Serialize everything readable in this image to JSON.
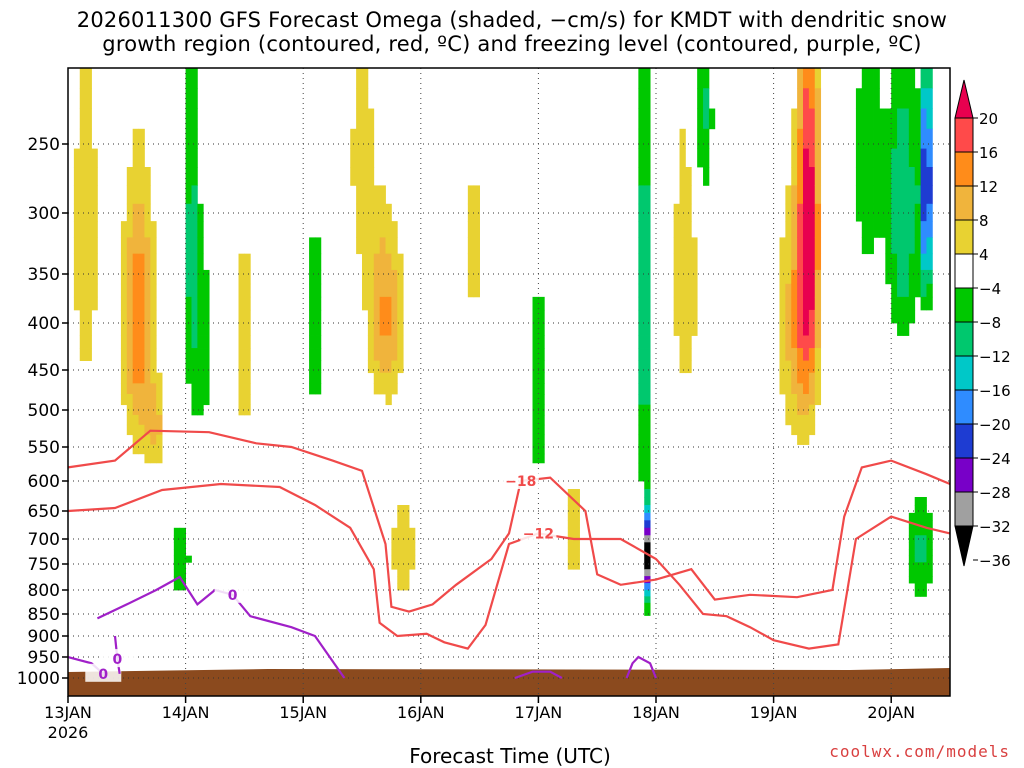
{
  "chart_data": {
    "type": "heatmap",
    "title_line1": "2026011300 GFS Forecast Omega (shaded, −cm/s) for KMDT with dendritic snow",
    "title_line2": "growth region (contoured, red, ºC) and freezing level (contoured, purple, ºC)",
    "xlabel": "Forecast Time (UTC)",
    "credit": "coolwx.com/models",
    "x_ticks": [
      {
        "label": "13JAN",
        "sub": "2026",
        "day": 0
      },
      {
        "label": "14JAN",
        "sub": "",
        "day": 1
      },
      {
        "label": "15JAN",
        "sub": "",
        "day": 2
      },
      {
        "label": "16JAN",
        "sub": "",
        "day": 3
      },
      {
        "label": "17JAN",
        "sub": "",
        "day": 4
      },
      {
        "label": "18JAN",
        "sub": "",
        "day": 5
      },
      {
        "label": "19JAN",
        "sub": "",
        "day": 6
      },
      {
        "label": "20JAN",
        "sub": "",
        "day": 7
      }
    ],
    "xlim_days": [
      0,
      7.5
    ],
    "y_ticks": [
      250,
      300,
      350,
      400,
      450,
      500,
      550,
      600,
      650,
      700,
      750,
      800,
      850,
      900,
      950,
      1000
    ],
    "ylim_hpa": [
      200,
      1015
    ],
    "colorbar_labels": [
      "20",
      "16",
      "12",
      "8",
      "4",
      "−4",
      "−8",
      "−12",
      "−16",
      "−20",
      "−24",
      "−28",
      "−32",
      "−36"
    ],
    "colorbar_colors": [
      "#e8004f",
      "#ff4a4a",
      "#ff8c1a",
      "#f0b43c",
      "#e8d232",
      "#ffffff",
      "#00c800",
      "#00c86e",
      "#00c8c8",
      "#2f8cff",
      "#1e3cd2",
      "#7800c8",
      "#a0a0a0",
      "#000000"
    ],
    "omega_blobs": [
      {
        "day": 0.15,
        "p": 320,
        "dd": 0.12,
        "dp": 170,
        "v": 7
      },
      {
        "day": 0.6,
        "p": 400,
        "dd": 0.13,
        "dp": 140,
        "v": 15
      },
      {
        "day": 0.75,
        "p": 520,
        "dd": 0.08,
        "dp": 60,
        "v": 8
      },
      {
        "day": 1.05,
        "p": 330,
        "dd": 0.06,
        "dp": 160,
        "v": -10
      },
      {
        "day": 1.15,
        "p": 420,
        "dd": 0.07,
        "dp": 130,
        "v": -6
      },
      {
        "day": 0.95,
        "p": 740,
        "dd": 0.1,
        "dp": 90,
        "v": -7
      },
      {
        "day": 1.5,
        "p": 420,
        "dd": 0.08,
        "dp": 120,
        "v": 7
      },
      {
        "day": 2.1,
        "p": 400,
        "dd": 0.08,
        "dp": 110,
        "v": -7
      },
      {
        "day": 2.5,
        "p": 260,
        "dd": 0.12,
        "dp": 90,
        "v": 6
      },
      {
        "day": 2.7,
        "p": 390,
        "dd": 0.15,
        "dp": 90,
        "v": 13
      },
      {
        "day": 2.85,
        "p": 720,
        "dd": 0.12,
        "dp": 110,
        "v": 7
      },
      {
        "day": 3.45,
        "p": 330,
        "dd": 0.1,
        "dp": 70,
        "v": 7
      },
      {
        "day": 4.0,
        "p": 470,
        "dd": 0.06,
        "dp": 140,
        "v": -8
      },
      {
        "day": 4.3,
        "p": 690,
        "dd": 0.09,
        "dp": 110,
        "v": 7
      },
      {
        "day": 4.9,
        "p": 390,
        "dd": 0.05,
        "dp": 220,
        "v": -13
      },
      {
        "day": 4.92,
        "p": 730,
        "dd": 0.018,
        "dp": 80,
        "v": -38
      },
      {
        "day": 5.25,
        "p": 350,
        "dd": 0.12,
        "dp": 150,
        "v": 7
      },
      {
        "day": 5.4,
        "p": 230,
        "dd": 0.08,
        "dp": 60,
        "v": -10
      },
      {
        "day": 6.3,
        "p": 300,
        "dd": 0.09,
        "dp": 160,
        "v": 21
      },
      {
        "day": 6.2,
        "p": 400,
        "dd": 0.15,
        "dp": 130,
        "v": 11
      },
      {
        "day": 6.8,
        "p": 260,
        "dd": 0.12,
        "dp": 90,
        "v": -8
      },
      {
        "day": 7.1,
        "p": 300,
        "dd": 0.14,
        "dp": 110,
        "v": -12
      },
      {
        "day": 7.3,
        "p": 280,
        "dd": 0.05,
        "dp": 80,
        "v": -26
      },
      {
        "day": 7.25,
        "p": 720,
        "dd": 0.12,
        "dp": 110,
        "v": -9
      }
    ],
    "dgz_contours": [
      {
        "label": "−18",
        "pts": [
          [
            0,
            580
          ],
          [
            0.4,
            570
          ],
          [
            0.7,
            528
          ],
          [
            1.2,
            530
          ],
          [
            1.6,
            545
          ],
          [
            1.9,
            550
          ],
          [
            2.25,
            570
          ],
          [
            2.5,
            585
          ],
          [
            2.7,
            710
          ],
          [
            2.75,
            835
          ],
          [
            2.9,
            845
          ],
          [
            3.1,
            830
          ],
          [
            3.3,
            790
          ],
          [
            3.6,
            740
          ],
          [
            3.75,
            690
          ],
          [
            3.85,
            600
          ],
          [
            4.1,
            595
          ],
          [
            4.4,
            650
          ],
          [
            4.5,
            770
          ],
          [
            4.7,
            790
          ],
          [
            5.0,
            780
          ],
          [
            5.3,
            760
          ],
          [
            5.5,
            820
          ],
          [
            5.8,
            810
          ],
          [
            6.2,
            815
          ],
          [
            6.5,
            800
          ],
          [
            6.6,
            660
          ],
          [
            6.75,
            580
          ],
          [
            7.0,
            570
          ],
          [
            7.3,
            590
          ],
          [
            7.5,
            605
          ]
        ]
      },
      {
        "label": "−12",
        "pts": [
          [
            0,
            650
          ],
          [
            0.4,
            645
          ],
          [
            0.8,
            615
          ],
          [
            1.3,
            605
          ],
          [
            1.8,
            610
          ],
          [
            2.1,
            640
          ],
          [
            2.4,
            680
          ],
          [
            2.6,
            760
          ],
          [
            2.65,
            870
          ],
          [
            2.8,
            900
          ],
          [
            3.05,
            895
          ],
          [
            3.2,
            915
          ],
          [
            3.4,
            930
          ],
          [
            3.55,
            875
          ],
          [
            3.75,
            710
          ],
          [
            4.0,
            690
          ],
          [
            4.3,
            700
          ],
          [
            4.5,
            700
          ],
          [
            4.7,
            700
          ],
          [
            5.0,
            740
          ],
          [
            5.2,
            790
          ],
          [
            5.4,
            850
          ],
          [
            5.6,
            855
          ],
          [
            5.8,
            880
          ],
          [
            6.0,
            910
          ],
          [
            6.3,
            930
          ],
          [
            6.55,
            920
          ],
          [
            6.7,
            700
          ],
          [
            7.0,
            660
          ],
          [
            7.3,
            680
          ],
          [
            7.5,
            690
          ]
        ]
      }
    ],
    "freezing_contours": [
      {
        "label": "0",
        "pts": [
          [
            0.25,
            860
          ],
          [
            0.5,
            830
          ],
          [
            0.75,
            800
          ],
          [
            0.95,
            775
          ],
          [
            1.1,
            830
          ],
          [
            1.25,
            800
          ],
          [
            1.4,
            810
          ],
          [
            1.55,
            855
          ],
          [
            1.9,
            880
          ],
          [
            2.1,
            900
          ],
          [
            2.3,
            980
          ],
          [
            2.35,
            1000
          ]
        ]
      },
      {
        "label": "0",
        "pts": [
          [
            0,
            950
          ],
          [
            0.2,
            965
          ],
          [
            0.3,
            990
          ],
          [
            0.35,
            1000
          ]
        ]
      },
      {
        "label": "",
        "pts": [
          [
            3.8,
            1000
          ],
          [
            3.95,
            985
          ],
          [
            4.1,
            985
          ],
          [
            4.2,
            1000
          ]
        ]
      },
      {
        "label": "",
        "pts": [
          [
            4.75,
            1000
          ],
          [
            4.8,
            965
          ],
          [
            4.85,
            950
          ],
          [
            4.95,
            965
          ],
          [
            5.0,
            1000
          ]
        ]
      },
      {
        "label": "0",
        "pts": [
          [
            0.4,
            900
          ],
          [
            0.42,
            955
          ],
          [
            0.44,
            990
          ]
        ]
      }
    ]
  }
}
